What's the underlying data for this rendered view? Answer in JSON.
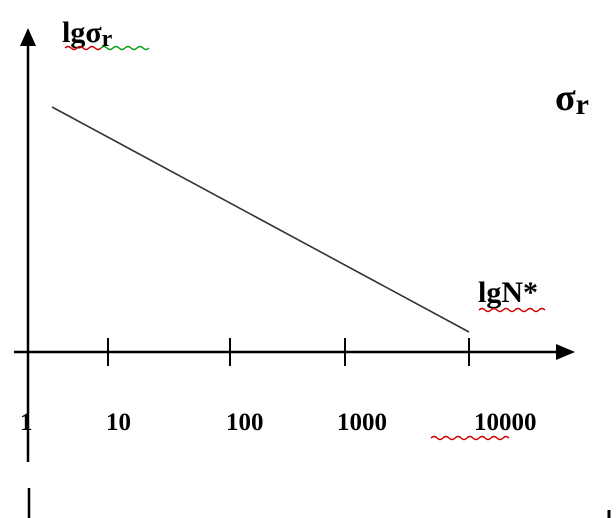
{
  "chart_data": {
    "type": "line",
    "title": "",
    "ylabel": "lgσ",
    "ylabel_sub": "r",
    "xlabel": "lgN*",
    "side_label": "σ",
    "side_label_sub": "r",
    "x_scale": "log",
    "tick_labels": [
      "1",
      "10",
      "100",
      "1000",
      "10000"
    ],
    "tick_values": [
      1,
      10,
      100,
      1000,
      10000
    ],
    "series": [
      {
        "x": [
          2,
          10000
        ],
        "y_relative": [
          1.0,
          0.0
        ]
      }
    ],
    "grid": false,
    "legend": "none",
    "colors": {
      "axis": "#000000",
      "line": "#333333",
      "spell_red": "#d00000",
      "spell_green": "#119911"
    }
  }
}
